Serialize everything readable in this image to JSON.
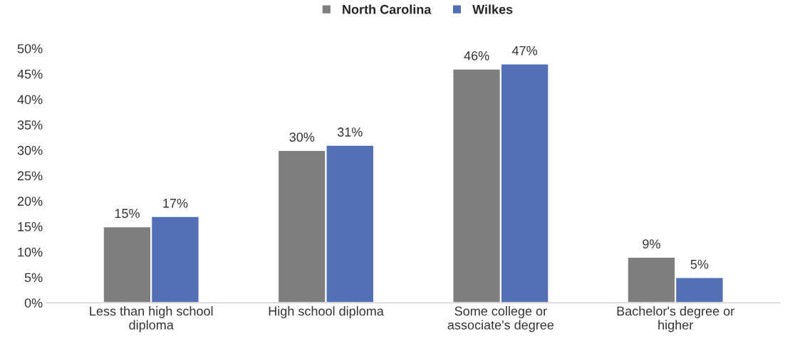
{
  "chart_data": {
    "type": "bar",
    "categories": [
      "Less than high school\ndiploma",
      "High school diploma",
      "Some college or\nassociate's degree",
      "Bachelor's degree or\nhigher"
    ],
    "series": [
      {
        "name": "North Carolina",
        "color": "#7f7f7f",
        "values": [
          15,
          30,
          46,
          9
        ],
        "value_labels": [
          "15%",
          "30%",
          "46%",
          "9%"
        ]
      },
      {
        "name": "Wilkes",
        "color": "#5470b4",
        "values": [
          17,
          31,
          47,
          5
        ],
        "value_labels": [
          "17%",
          "31%",
          "47%",
          "5%"
        ]
      }
    ],
    "ylim": [
      0,
      50
    ],
    "yticks": [
      {
        "value": 0,
        "label": "0%"
      },
      {
        "value": 5,
        "label": "5%"
      },
      {
        "value": 10,
        "label": "10%"
      },
      {
        "value": 15,
        "label": "15%"
      },
      {
        "value": 20,
        "label": "20%"
      },
      {
        "value": 25,
        "label": "25%"
      },
      {
        "value": 30,
        "label": "30%"
      },
      {
        "value": 35,
        "label": "35%"
      },
      {
        "value": 40,
        "label": "40%"
      },
      {
        "value": 45,
        "label": "45%"
      },
      {
        "value": 50,
        "label": "50%"
      }
    ],
    "legend": "top",
    "grid": false
  }
}
